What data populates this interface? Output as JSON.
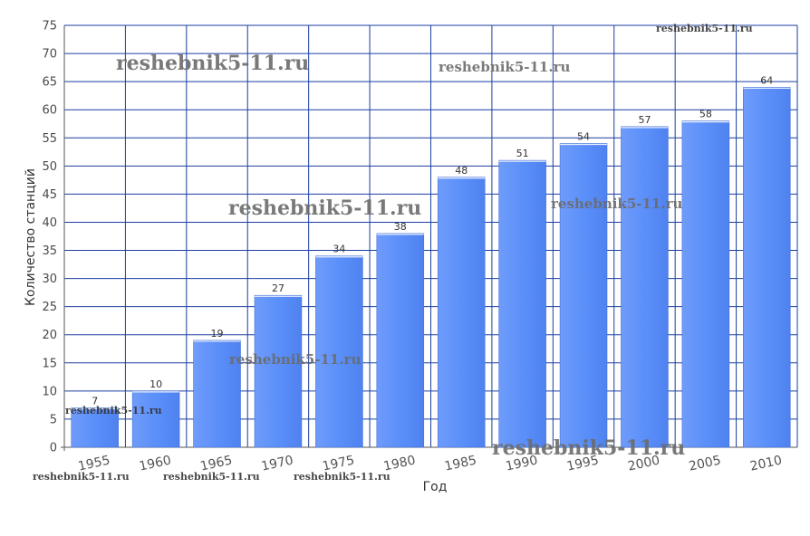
{
  "chart_data": {
    "type": "bar",
    "title": "",
    "xlabel": "Год",
    "ylabel": "Количество станций",
    "categories": [
      "1955",
      "1960",
      "1965",
      "1970",
      "1975",
      "1980",
      "1985",
      "1990",
      "1995",
      "2000",
      "2005",
      "2010"
    ],
    "values": [
      7,
      10,
      19,
      27,
      34,
      38,
      48,
      51,
      54,
      57,
      58,
      64
    ],
    "data_labels": [
      "7",
      "10",
      "19",
      "27",
      "34",
      "38",
      "48",
      "51",
      "54",
      "57",
      "58",
      "64"
    ],
    "ylim": [
      0,
      75
    ],
    "yticks": [
      "0",
      "5",
      "10",
      "15",
      "20",
      "25",
      "30",
      "35",
      "40",
      "45",
      "50",
      "55",
      "60",
      "65",
      "70",
      "75"
    ],
    "grid": true,
    "bar_color": "#5b8ff9",
    "grid_color": "#1b3fa0"
  },
  "watermarks": [
    "reshebnik5-11.ru",
    "reshebnik5-11.ru",
    "reshebnik5-11.ru",
    "reshebnik5-11.ru",
    "reshebnik5-11.ru",
    "reshebnik5-11.ru",
    "reshebnik5-11.ru",
    "reshebnik5-11.ru",
    "reshebnik5-11.ru",
    "reshebnik5-11.ru",
    "reshebnik5-11.ru"
  ]
}
